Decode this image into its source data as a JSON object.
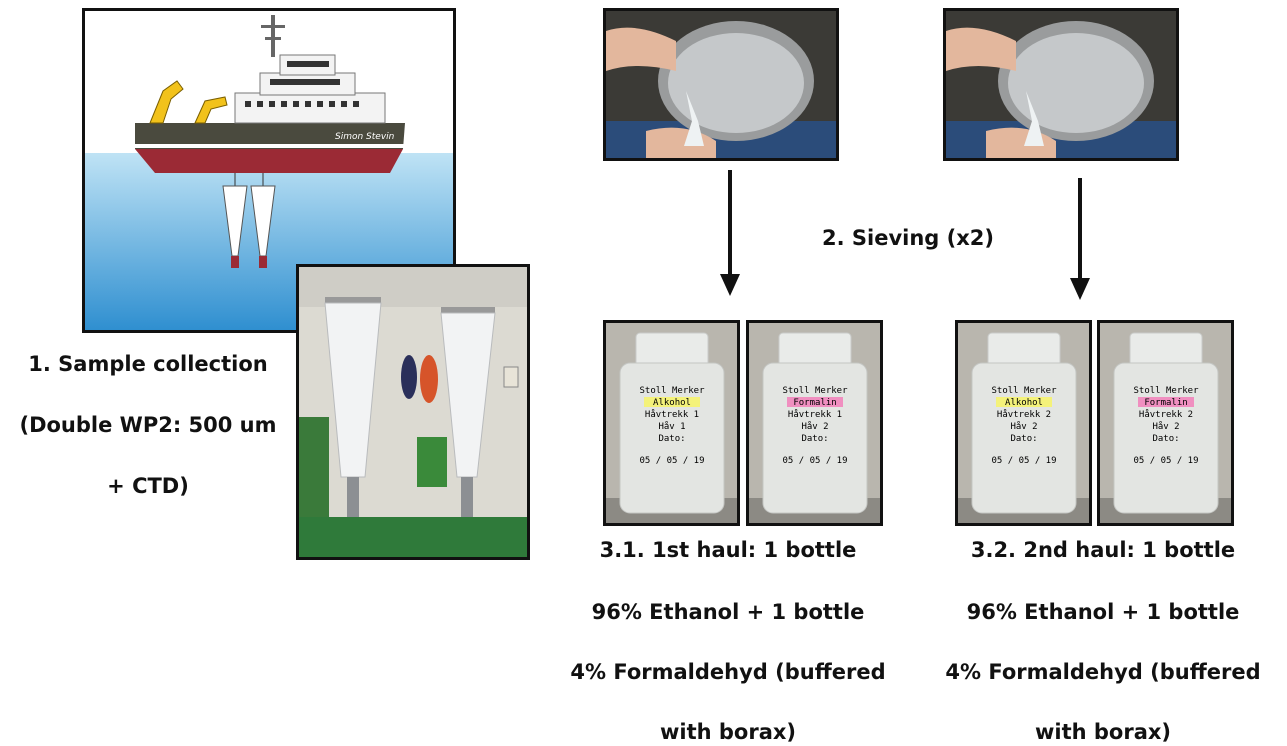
{
  "step1": {
    "lines": [
      "1. Sample collection",
      "(Double WP2: 500 um",
      "+ CTD)"
    ],
    "ship_name": "Simon Stevin"
  },
  "step2": {
    "label": "2. Sieving (x2)"
  },
  "step3_1": {
    "lines": [
      "3.1. 1st haul: 1 bottle",
      "96% Ethanol + 1 bottle",
      "4% Formaldehyd (buffered",
      "with borax)"
    ]
  },
  "step3_2": {
    "lines": [
      "3.2. 2nd haul: 1 bottle",
      "96% Ethanol + 1 bottle",
      "4% Formaldehyd (buffered",
      "with borax)"
    ]
  },
  "bottle_labels": {
    "b1": [
      "Stoll Merker",
      "Alkohol",
      "Håvtrekk 1",
      "Håv 1",
      "Dato:",
      "05 / 05 / 19"
    ],
    "b2": [
      "Stoll Merker",
      "Formalin",
      "Håvtrekk 1",
      "Håv 2",
      "Dato:",
      "05 / 05 / 19"
    ],
    "b3": [
      "Stoll Merker",
      "Alkohol",
      "Håvtrekk 2",
      "Håv 2",
      "Dato:",
      "05 / 05 / 19"
    ],
    "b4": [
      "Stoll Merker",
      "Formalin",
      "Håvtrekk 2",
      "Håv 2",
      "Dato:",
      "05 / 05 / 19"
    ]
  },
  "colors": {
    "alcohol_highlight": "#f4f27a",
    "formalin_highlight": "#f08fc0",
    "hull_red": "#9b2a35",
    "hull_dark": "#4a4a3e",
    "sea": "#4aa3d9",
    "crane_yellow": "#f2c21b"
  }
}
